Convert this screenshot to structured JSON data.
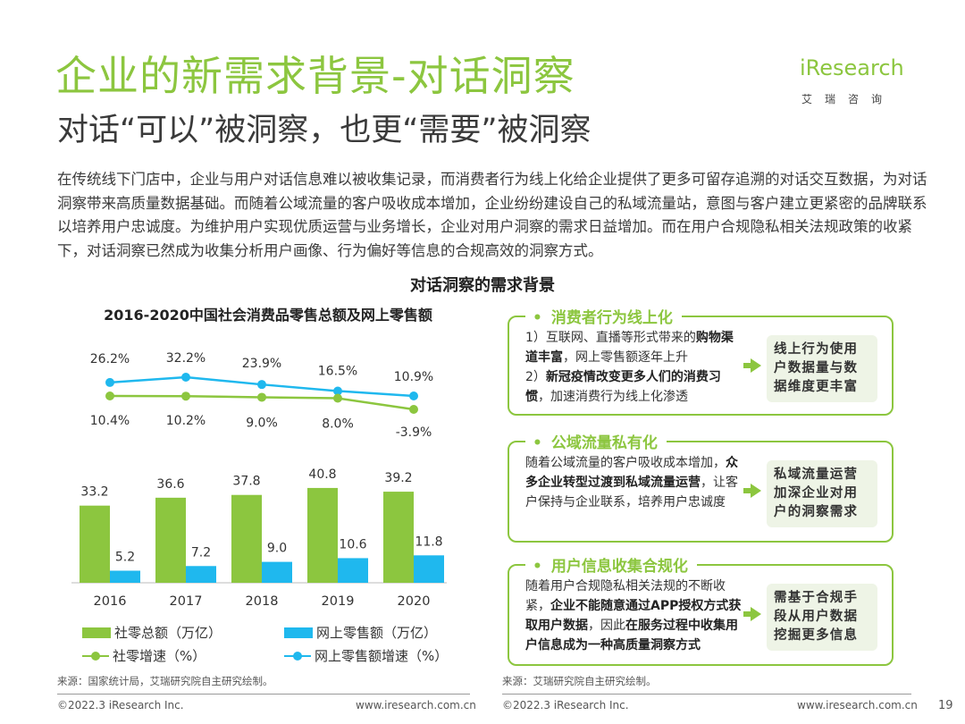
{
  "header": {
    "title": "企业的新需求背景-对话洞察",
    "subtitle": "对话“可以”被洞察，也更“需要”被洞察"
  },
  "logo": {
    "name": "iResearch",
    "sub": "艾瑞咨询"
  },
  "description": "在传统线下门店中，企业与用户对话信息难以被收集记录，而消费者行为线上化给企业提供了更多可留存追溯的对话交互数据，为对话洞察带来高质量数据基础。而随着公域流量的客户吸收成本增加，企业纷纷建设自己的私域流量站，意图与客户建立更紧密的品牌联系以培养用户忠诚度。为维护用户实现优质运营与业务增长，企业对用户洞察的需求日益增加。而在用户合规隐私相关法规政策的收紧下，对话洞察已然成为收集分析用户画像、行为偏好等信息的合规高效的洞察方式。",
  "section_title": "对话洞察的需求背景",
  "chart_data": {
    "type": "bar",
    "title": "2016-2020中国社会消费品零售总额及网上零售额",
    "categories": [
      "2016",
      "2017",
      "2018",
      "2019",
      "2020"
    ],
    "series": [
      {
        "name": "社零总额（万亿）",
        "kind": "bar",
        "color": "#8cc63f",
        "values": [
          33.2,
          36.6,
          37.8,
          40.8,
          39.2
        ],
        "labels": [
          "33.2",
          "36.6",
          "37.8",
          "40.8",
          "39.2"
        ]
      },
      {
        "name": "网上零售额（万亿）",
        "kind": "bar",
        "color": "#1fb8ee",
        "values": [
          5.2,
          7.2,
          9.0,
          10.6,
          11.8
        ],
        "labels": [
          "5.2",
          "7.2",
          "9.0",
          "10.6",
          "11.8"
        ]
      },
      {
        "name": "社零增速（%）",
        "kind": "line",
        "color": "#8cc63f",
        "values": [
          10.4,
          10.2,
          9.0,
          8.0,
          -3.9
        ],
        "labels": [
          "10.4%",
          "10.2%",
          "9.0%",
          "8.0%",
          "-3.9%"
        ]
      },
      {
        "name": "网上零售额增速（%）",
        "kind": "line",
        "color": "#1fb8ee",
        "values": [
          26.2,
          32.2,
          23.9,
          16.5,
          10.9
        ],
        "labels": [
          "26.2%",
          "32.2%",
          "23.9%",
          "16.5%",
          "10.9%"
        ]
      }
    ],
    "ylim": [
      0,
      45
    ],
    "legend_position": "bottom",
    "source": "来源：国家统计局，艾瑞研究院自主研究绘制。"
  },
  "cards": [
    {
      "heading": "消费者行为线上化",
      "body_html": "1）互联网、直播等形式带来的<b>购物渠道丰富</b>，网上零售额逐年上升<br>2）<b>新冠疫情改变更多人们的消费习惯</b>，加速消费行为线上化渗透",
      "conclusion": "线上行为使用户数据量与数据维度更丰富"
    },
    {
      "heading": "公域流量私有化",
      "body_html": "随着公域流量的客户吸收成本增加，<b>众多企业转型过渡到私域流量运营</b>，让客户保持与企业联系，培养用户忠诚度",
      "conclusion": "私域流量运营加深企业对用户的洞察需求"
    },
    {
      "heading": "用户信息收集合规化",
      "body_html": "随着用户合规隐私相关法规的不断收紧，<b>企业不能随意通过APP授权方式获取用户数据</b>，因此<b>在服务过程中收集用户信息成为一种高质量洞察方式</b>",
      "conclusion": "需基于合规手段从用户数据挖掘更多信息"
    }
  ],
  "right_source": "来源：艾瑞研究院自主研究绘制。",
  "footer": {
    "left_copyright": "©2022.3 iResearch Inc.",
    "left_url": "www.iresearch.com.cn",
    "right_copyright": "©2022.3 iResearch Inc.",
    "right_url": "www.iresearch.com.cn",
    "page_number": "19"
  }
}
